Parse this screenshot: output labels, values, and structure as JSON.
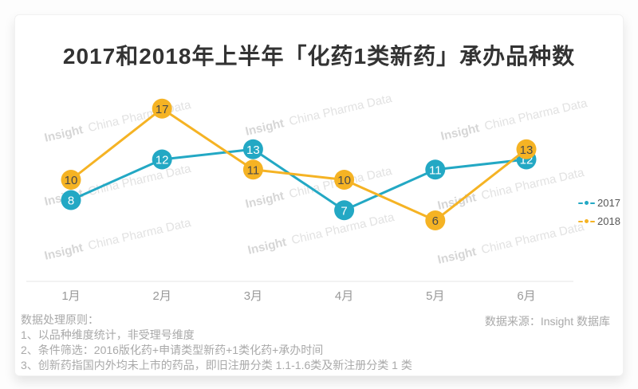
{
  "title": "2017和2018年上半年「化药1类新药」承办品种数",
  "chart_data": {
    "type": "line",
    "categories": [
      "1月",
      "2月",
      "3月",
      "4月",
      "5月",
      "6月"
    ],
    "series": [
      {
        "name": "2017",
        "color": "#23A8C4",
        "label_color": "#ffffff",
        "values": [
          8,
          12,
          13,
          7,
          11,
          12
        ]
      },
      {
        "name": "2018",
        "color": "#F5B324",
        "label_color": "#4a4a4a",
        "values": [
          10,
          17,
          11,
          10,
          6,
          13
        ]
      }
    ],
    "title": "2017和2018年上半年「化药1类新药」承办品种数",
    "xlabel": "",
    "ylabel": "",
    "ylim": [
      0,
      18
    ],
    "grid": false,
    "legend_position": "right",
    "point_labels": true
  },
  "watermark": {
    "brand": "Insight",
    "rest": "China Pharma Data"
  },
  "notes": {
    "heading": "数据处理原则：",
    "items": [
      "1、以品种维度统计，非受理号维度",
      "2、条件筛选：2016版化药+申请类型新药+1类化药+承办时间",
      "3、创新药指国内外均未上市的药品，即旧注册分类 1.1-1.6类及新注册分类 1 类"
    ]
  },
  "source": "数据来源：Insight 数据库",
  "axis": {
    "color": "#e6e6e6",
    "label_color": "#999999"
  }
}
